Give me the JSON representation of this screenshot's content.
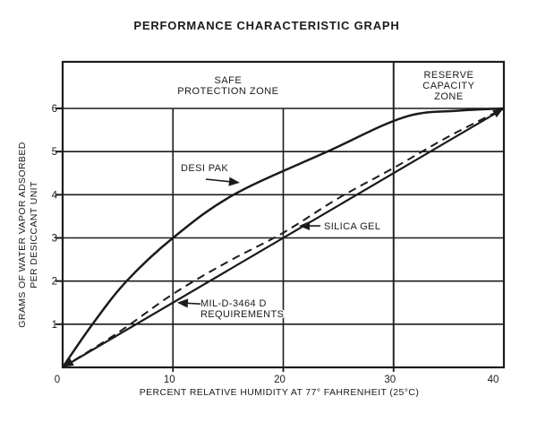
{
  "colors": {
    "ink": "#1b1b1b",
    "background": "#ffffff"
  },
  "chart_data": {
    "type": "line",
    "title": "PERFORMANCE CHARACTERISTIC GRAPH",
    "xlabel": "PERCENT RELATIVE HUMIDITY AT 77° FAHRENHEIT (25°C)",
    "ylabel_lines": [
      "GRAMS OF WATER VAPOR ADSORBED",
      "PER DESICCANT UNIT"
    ],
    "xlim": [
      0,
      40
    ],
    "ylim": [
      0,
      6
    ],
    "xticks": [
      0,
      10,
      20,
      30,
      40
    ],
    "yticks": [
      1,
      2,
      3,
      4,
      5,
      6
    ],
    "grid": true,
    "legend": "inline-annotations",
    "zone_divider_x": 30,
    "zones": [
      {
        "name": "safe-protection-zone",
        "label_lines": [
          "SAFE",
          "PROTECTION ZONE"
        ],
        "x_range": [
          0,
          30
        ]
      },
      {
        "name": "reserve-capacity-zone",
        "label_lines": [
          "RESERVE",
          "CAPACITY",
          "ZONE"
        ],
        "x_range": [
          30,
          40
        ]
      }
    ],
    "series": [
      {
        "name": "DESI PAK",
        "line_style": "solid",
        "points": [
          [
            0,
            0
          ],
          [
            2.7,
            1
          ],
          [
            5.8,
            2
          ],
          [
            10,
            3
          ],
          [
            15.5,
            4
          ],
          [
            24,
            5
          ],
          [
            31,
            5.8
          ],
          [
            36,
            5.95
          ],
          [
            40,
            6
          ]
        ]
      },
      {
        "name": "SILICA GEL",
        "line_style": "dashed",
        "points": [
          [
            0,
            0
          ],
          [
            5,
            0.8
          ],
          [
            10,
            1.7
          ],
          [
            15,
            2.45
          ],
          [
            20,
            3.12
          ],
          [
            25,
            3.92
          ],
          [
            30,
            4.62
          ],
          [
            35,
            5.35
          ],
          [
            40,
            6
          ]
        ]
      },
      {
        "name": "MIL-D-3464 D REQUIREMENTS",
        "line_style": "solid",
        "points": [
          [
            0,
            0
          ],
          [
            40,
            6
          ]
        ],
        "arrowheads": "both-ends"
      }
    ],
    "annotations": [
      {
        "id": "desi-pak",
        "lines": [
          "DESI PAK"
        ],
        "text_at": [
          10.71,
          4.55
        ],
        "arrow_from": [
          12.98,
          4.36
        ],
        "arrow_to": [
          16.06,
          4.28
        ]
      },
      {
        "id": "silica-gel",
        "lines": [
          "SILICA GEL"
        ],
        "text_at": [
          23.69,
          3.2
        ],
        "arrow_from": [
          23.37,
          3.28
        ],
        "arrow_to": [
          21.42,
          3.28
        ]
      },
      {
        "id": "mil-d-3464-d-requirements",
        "lines": [
          "MIL-D-3464 D",
          "REQUIREMENTS"
        ],
        "text_at": [
          12.49,
          1.41
        ],
        "arrow_from": [
          12.49,
          1.47
        ],
        "arrow_to": [
          10.38,
          1.5
        ]
      }
    ]
  }
}
